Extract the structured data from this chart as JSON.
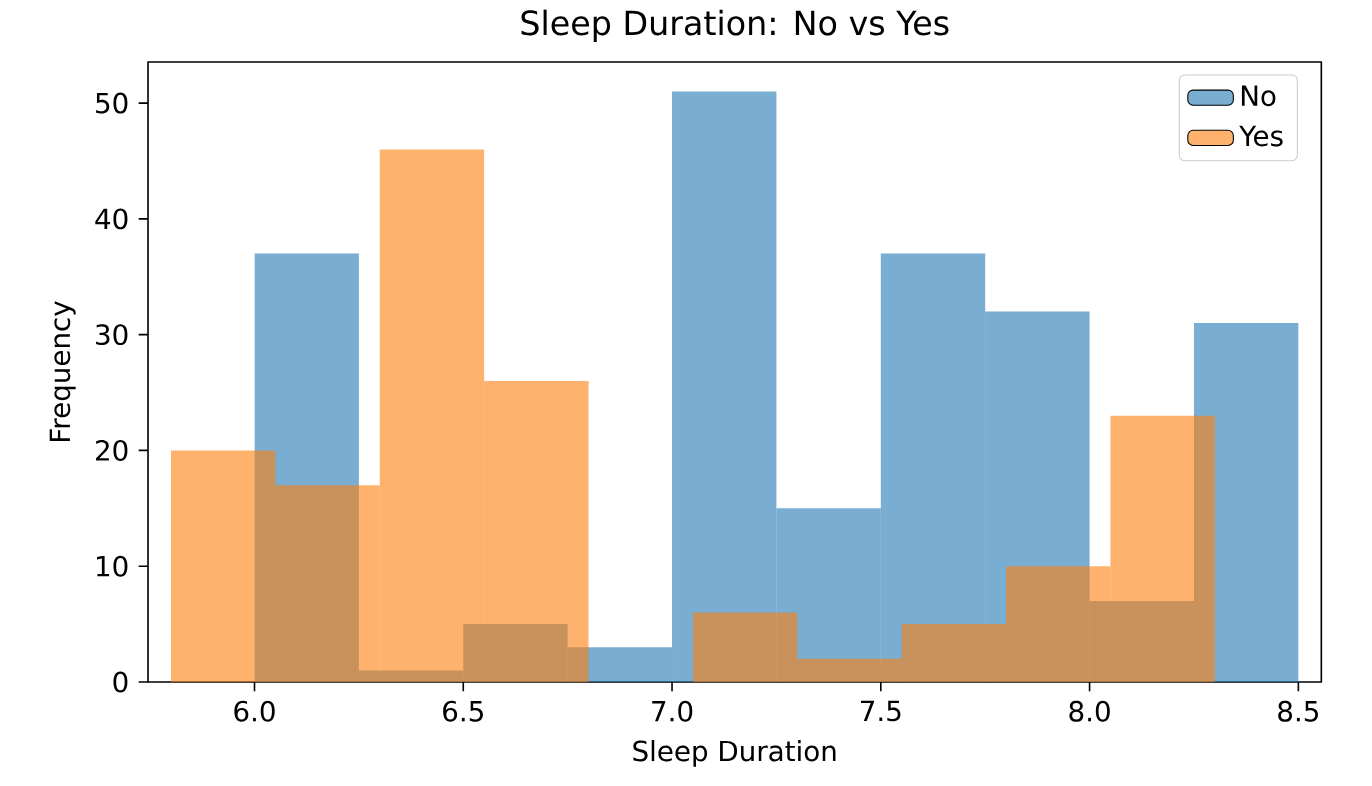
{
  "chart_data": {
    "type": "histogram",
    "title": "Sleep Duration: No vs Yes",
    "xlabel": "Sleep Duration",
    "ylabel": "Frequency",
    "series": [
      {
        "name": "No",
        "color": "#1f77b4",
        "values": [
          37,
          1,
          5,
          3,
          51,
          15,
          37,
          32,
          7,
          31
        ]
      },
      {
        "name": "Yes",
        "color": "#ff7f0e",
        "bins": [
          5.8,
          6.05,
          6.3,
          6.55,
          6.8,
          7.05,
          7.3,
          7.55,
          7.8,
          8.05,
          8.3
        ],
        "values": [
          20,
          17,
          46,
          26,
          0,
          6,
          2,
          5,
          10,
          23
        ]
      }
    ],
    "bins": [
      6.0,
      6.25,
      6.5,
      6.75,
      7.0,
      7.25,
      7.5,
      7.75,
      8.0,
      8.25,
      8.5
    ],
    "xlim": [
      5.745,
      8.555
    ],
    "ylim": [
      0,
      53.55
    ],
    "xticks": [
      {
        "value": 6.0,
        "label": "6.0"
      },
      {
        "value": 6.5,
        "label": "6.5"
      },
      {
        "value": 7.0,
        "label": "7.0"
      },
      {
        "value": 7.5,
        "label": "7.5"
      },
      {
        "value": 8.0,
        "label": "8.0"
      },
      {
        "value": 8.5,
        "label": "8.5"
      }
    ],
    "yticks": [
      {
        "value": 0,
        "label": "0"
      },
      {
        "value": 10,
        "label": "10"
      },
      {
        "value": 20,
        "label": "20"
      },
      {
        "value": 30,
        "label": "30"
      },
      {
        "value": 40,
        "label": "40"
      },
      {
        "value": 50,
        "label": "50"
      }
    ],
    "grid": false,
    "legend": "top right"
  }
}
